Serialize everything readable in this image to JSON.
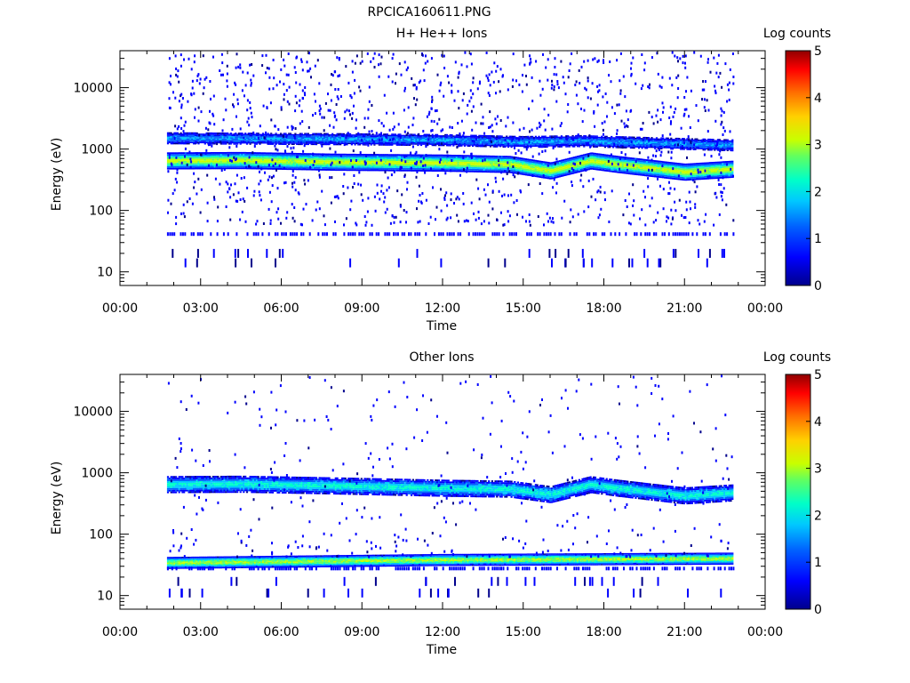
{
  "figure_title": "RPCICA160611.PNG",
  "colors": {
    "axis": "#000000",
    "background": "#ffffff",
    "colormap": [
      "#00008c",
      "#0000ff",
      "#0060ff",
      "#00c8ff",
      "#00ffc8",
      "#60ff60",
      "#c8ff00",
      "#ffd000",
      "#ff7000",
      "#ff0000",
      "#900000"
    ]
  },
  "chart_data": [
    {
      "type": "heatmap",
      "title": "H+ He++ Ions",
      "xlabel": "Time",
      "ylabel": "Energy (eV)",
      "x_ticks": [
        "00:00",
        "03:00",
        "06:00",
        "09:00",
        "12:00",
        "15:00",
        "18:00",
        "21:00",
        "00:00"
      ],
      "x_range_hours": [
        0,
        24
      ],
      "y_ticks": [
        "10",
        "100",
        "1000",
        "10000"
      ],
      "y_scale": "log",
      "y_range": [
        6,
        40000
      ],
      "colorbar": {
        "label": "Log counts",
        "ticks": [
          "0",
          "1",
          "2",
          "3",
          "4",
          "5"
        ],
        "range": [
          0,
          5
        ]
      },
      "data_extent_hours": [
        1.75,
        22.8
      ],
      "bands": [
        {
          "name": "main",
          "log_counts_peak": 3.0,
          "energy_center": [
            [
              1.75,
              640
            ],
            [
              4.5,
              650
            ],
            [
              8.0,
              610
            ],
            [
              12.0,
              590
            ],
            [
              14.5,
              560
            ],
            [
              16.0,
              440
            ],
            [
              17.5,
              640
            ],
            [
              18.5,
              560
            ],
            [
              20.0,
              470
            ],
            [
              21.0,
              420
            ],
            [
              22.8,
              470
            ]
          ]
        },
        {
          "name": "upper",
          "log_counts_peak": 1.3,
          "energy_center": [
            [
              1.75,
              1500
            ],
            [
              8.0,
              1450
            ],
            [
              12.0,
              1400
            ],
            [
              15.0,
              1300
            ],
            [
              17.0,
              1350
            ],
            [
              22.8,
              1150
            ]
          ]
        }
      ],
      "low_energy_line_ev": 42
    },
    {
      "type": "heatmap",
      "title": "Other Ions",
      "xlabel": "Time",
      "ylabel": "Energy (eV)",
      "x_ticks": [
        "00:00",
        "03:00",
        "06:00",
        "09:00",
        "12:00",
        "15:00",
        "18:00",
        "21:00",
        "00:00"
      ],
      "x_range_hours": [
        0,
        24
      ],
      "y_ticks": [
        "10",
        "100",
        "1000",
        "10000"
      ],
      "y_scale": "log",
      "y_range": [
        6,
        40000
      ],
      "colorbar": {
        "label": "Log counts",
        "ticks": [
          "0",
          "1",
          "2",
          "3",
          "4",
          "5"
        ],
        "range": [
          0,
          5
        ]
      },
      "data_extent_hours": [
        1.75,
        22.8
      ],
      "bands": [
        {
          "name": "upper",
          "log_counts_peak": 1.9,
          "energy_center": [
            [
              1.75,
              640
            ],
            [
              4.5,
              650
            ],
            [
              8.0,
              610
            ],
            [
              12.0,
              560
            ],
            [
              14.5,
              540
            ],
            [
              16.0,
              440
            ],
            [
              17.5,
              640
            ],
            [
              18.5,
              560
            ],
            [
              20.0,
              470
            ],
            [
              21.0,
              420
            ],
            [
              22.8,
              470
            ]
          ]
        },
        {
          "name": "low",
          "log_counts_peak": 2.8,
          "energy_center": [
            [
              1.75,
              34
            ],
            [
              12.0,
              38
            ],
            [
              22.8,
              40
            ]
          ]
        }
      ],
      "low_energy_line_ev": 28
    }
  ]
}
